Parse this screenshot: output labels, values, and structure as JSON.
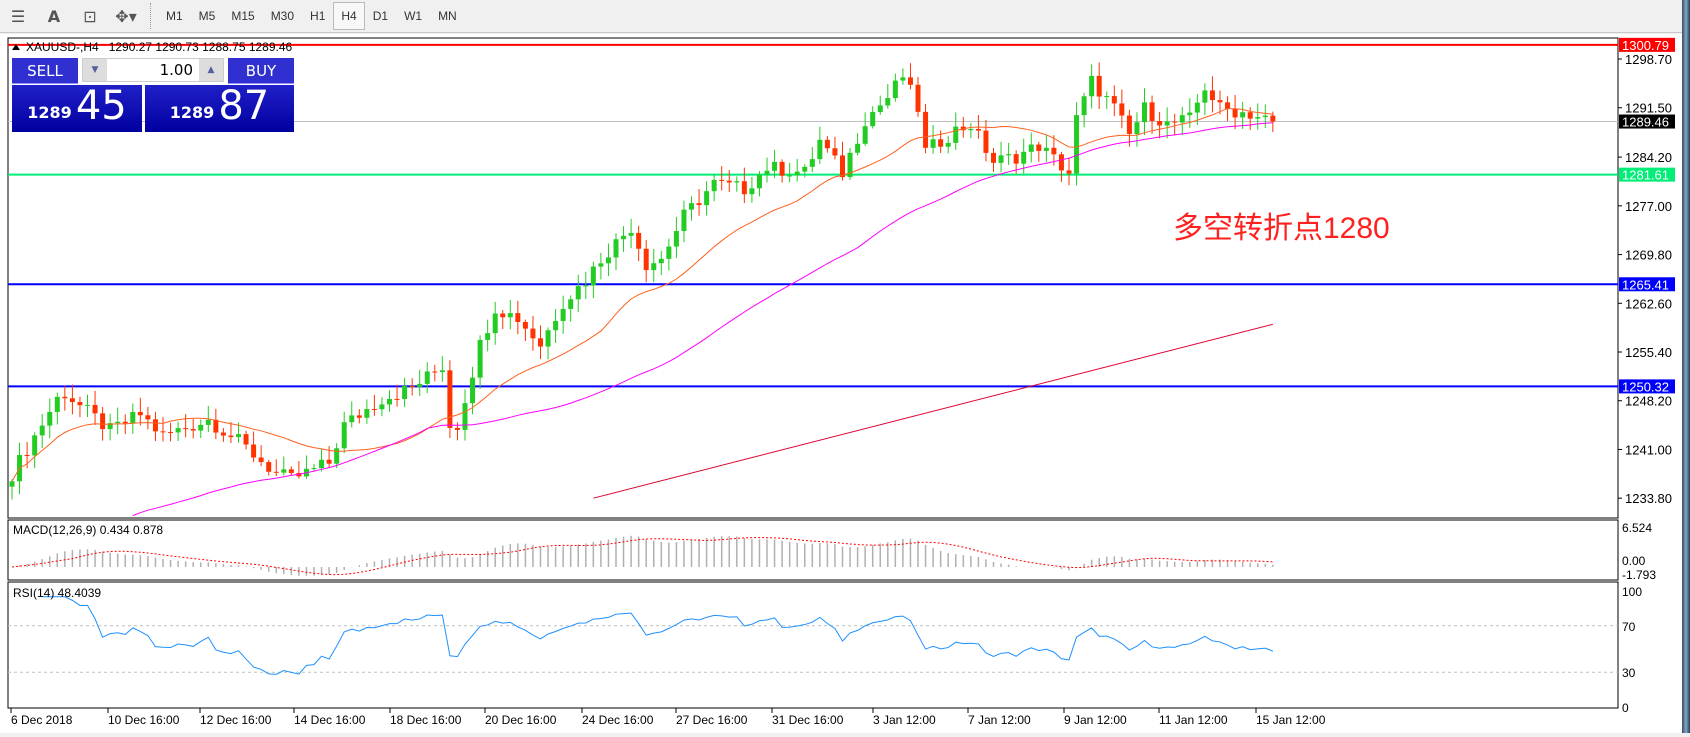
{
  "toolbar": {
    "icons": [
      "fibonacci-icon",
      "text-icon",
      "text-label-icon",
      "arrows-icon"
    ],
    "timeframes": [
      "M1",
      "M5",
      "M15",
      "M30",
      "H1",
      "H4",
      "D1",
      "W1",
      "MN"
    ],
    "active": "H4"
  },
  "header": {
    "symbol": "XAUUSD-,H4",
    "ohlc": "1290.27 1290.73 1288.75 1289.46"
  },
  "trade_panel": {
    "sell_label": "SELL",
    "buy_label": "BUY",
    "lot": "1.00",
    "sell_prefix": "1289",
    "sell_big": "45",
    "buy_prefix": "1289",
    "buy_big": "87"
  },
  "annotation": "多空转折点1280",
  "colors": {
    "bullish": "#22cc22",
    "bearish": "#ff3300",
    "ma_fast": "#ff6020",
    "ma_mid": "#ff00ff",
    "ma_slow": "#e00030",
    "resistance": "#ff0000",
    "support_green": "#00ee77",
    "support_blue": "#0000ff",
    "bid": "#c0c0c0"
  },
  "chart_data": [
    {
      "type": "candlestick",
      "symbol": "XAUUSD-",
      "timeframe": "H4",
      "ylim": [
        1228,
        1302.5
      ],
      "yticks": [
        "1298.70",
        "1291.50",
        "1284.20",
        "1277.00",
        "1269.80",
        "1262.60",
        "1255.40",
        "1248.20",
        "1241.00",
        "1233.80"
      ],
      "xticks": [
        "6 Dec 2018",
        "10 Dec 16:00",
        "12 Dec 16:00",
        "14 Dec 16:00",
        "18 Dec 16:00",
        "20 Dec 16:00",
        "24 Dec 16:00",
        "27 Dec 16:00",
        "31 Dec 16:00",
        "3 Jan 12:00",
        "7 Jan 12:00",
        "9 Jan 12:00",
        "11 Jan 12:00",
        "15 Jan 12:00"
      ],
      "bar_count": 168,
      "close_keypoints": [
        [
          0,
          1237.4
        ],
        [
          6,
          1248.5
        ],
        [
          7,
          1249.3
        ],
        [
          13,
          1243.8
        ],
        [
          17,
          1246.2
        ],
        [
          20,
          1243.0
        ],
        [
          26,
          1245.4
        ],
        [
          30,
          1242.2
        ],
        [
          35,
          1237.4
        ],
        [
          37,
          1236.6
        ],
        [
          42,
          1239.0
        ],
        [
          44,
          1244.6
        ],
        [
          49,
          1248.5
        ],
        [
          53,
          1250.1
        ],
        [
          57,
          1253.3
        ],
        [
          58,
          1244.6
        ],
        [
          59,
          1244.6
        ],
        [
          62,
          1256.5
        ],
        [
          64,
          1262.0
        ],
        [
          67,
          1260.4
        ],
        [
          70,
          1256.5
        ],
        [
          73,
          1262.8
        ],
        [
          76,
          1266.0
        ],
        [
          78,
          1269.2
        ],
        [
          82,
          1273.9
        ],
        [
          84,
          1268.4
        ],
        [
          86,
          1269.2
        ],
        [
          89,
          1275.5
        ],
        [
          93,
          1280.3
        ],
        [
          97,
          1279.5
        ],
        [
          100,
          1282.7
        ],
        [
          105,
          1281.9
        ],
        [
          107,
          1286.6
        ],
        [
          110,
          1281.9
        ],
        [
          113,
          1289.8
        ],
        [
          116,
          1293.0
        ],
        [
          118,
          1296.2
        ],
        [
          120,
          1291.4
        ],
        [
          121,
          1285.0
        ],
        [
          125,
          1288.2
        ],
        [
          127,
          1289.0
        ],
        [
          130,
          1283.5
        ],
        [
          133,
          1284.3
        ],
        [
          136,
          1285.9
        ],
        [
          140,
          1281.9
        ],
        [
          141,
          1289.8
        ],
        [
          143,
          1295.4
        ],
        [
          146,
          1291.4
        ],
        [
          148,
          1287.4
        ],
        [
          150,
          1291.4
        ],
        [
          153,
          1289.0
        ],
        [
          156,
          1289.8
        ],
        [
          158,
          1294.6
        ],
        [
          160,
          1291.4
        ],
        [
          164,
          1290.6
        ],
        [
          167,
          1289.46
        ]
      ],
      "ma_slow_keypoints": [
        [
          77,
          1233.8
        ],
        [
          167,
          1259.5
        ]
      ],
      "price_lines": [
        {
          "label": "1300.79",
          "value": 1300.79,
          "color": "#ff0000"
        },
        {
          "label": "1289.46",
          "value": 1289.46,
          "color": "#000000",
          "line": "#c0c0c0"
        },
        {
          "label": "1281.61",
          "value": 1281.61,
          "color": "#00ee77"
        },
        {
          "label": "1265.41",
          "value": 1265.41,
          "color": "#0000ff"
        },
        {
          "label": "1250.32",
          "value": 1250.32,
          "color": "#0000ff"
        }
      ]
    },
    {
      "type": "bar+line",
      "title": "MACD(12,26,9) 0.434 0.878",
      "yticks": [
        "6.524",
        "0.00",
        "-1.793"
      ],
      "ylim": [
        -1.793,
        6.524
      ]
    },
    {
      "type": "line",
      "title": "RSI(14) 48.4039",
      "yticks": [
        "100",
        "70",
        "30",
        "0"
      ],
      "ylim": [
        0,
        100
      ],
      "levels": [
        70,
        30
      ]
    }
  ]
}
